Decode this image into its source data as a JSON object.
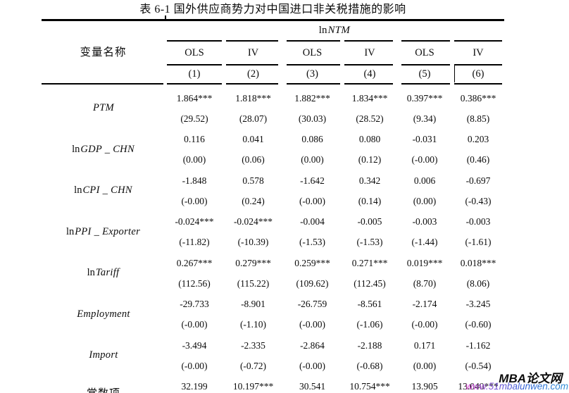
{
  "title": "表 6-1 国外供应商势力对中国进口非关税措施的影响",
  "header": {
    "var_col_label": "变量名称",
    "dep_var_prefix": "ln",
    "dep_var_name": "NTM",
    "methods": [
      "OLS",
      "IV",
      "OLS",
      "IV",
      "OLS",
      "IV"
    ],
    "model_numbers": [
      "(1)",
      "(2)",
      "(3)",
      "(4)",
      "(5)",
      "(6)"
    ]
  },
  "rows": [
    {
      "prefix": "",
      "name": "PTM",
      "coefs": [
        "1.864***",
        "1.818***",
        "1.882***",
        "1.834***",
        "0.397***",
        "0.386***"
      ],
      "tstats": [
        "(29.52)",
        "(28.07)",
        "(30.03)",
        "(28.52)",
        "(9.34)",
        "(8.85)"
      ]
    },
    {
      "prefix": "ln",
      "name": "GDP _ CHN",
      "coefs": [
        "0.116",
        "0.041",
        "0.086",
        "0.080",
        "-0.031",
        "0.203"
      ],
      "tstats": [
        "(0.00)",
        "(0.06)",
        "(0.00)",
        "(0.12)",
        "(-0.00)",
        "(0.46)"
      ]
    },
    {
      "prefix": "ln",
      "name": "CPI _ CHN",
      "coefs": [
        "-1.848",
        "0.578",
        "-1.642",
        "0.342",
        "0.006",
        "-0.697"
      ],
      "tstats": [
        "(-0.00)",
        "(0.24)",
        "(-0.00)",
        "(0.14)",
        "(0.00)",
        "(-0.43)"
      ]
    },
    {
      "prefix": "ln",
      "name": "PPI _ Exporter",
      "coefs": [
        "-0.024***",
        "-0.024***",
        "-0.004",
        "-0.005",
        "-0.003",
        "-0.003"
      ],
      "tstats": [
        "(-11.82)",
        "(-10.39)",
        "(-1.53)",
        "(-1.53)",
        "(-1.44)",
        "(-1.61)"
      ]
    },
    {
      "prefix": "ln",
      "name": "Tariff",
      "coefs": [
        "0.267***",
        "0.279***",
        "0.259***",
        "0.271***",
        "0.019***",
        "0.018***"
      ],
      "tstats": [
        "(112.56)",
        "(115.22)",
        "(109.62)",
        "(112.45)",
        "(8.70)",
        "(8.06)"
      ]
    },
    {
      "prefix": "",
      "name": "Employment",
      "coefs": [
        "-29.733",
        "-8.901",
        "-26.759",
        "-8.561",
        "-2.174",
        "-3.245"
      ],
      "tstats": [
        "(-0.00)",
        "(-1.10)",
        "(-0.00)",
        "(-1.06)",
        "(-0.00)",
        "(-0.60)"
      ]
    },
    {
      "prefix": "",
      "name": "Import",
      "coefs": [
        "-3.494",
        "-2.335",
        "-2.864",
        "-2.188",
        "0.171",
        "-1.162"
      ],
      "tstats": [
        "(-0.00)",
        "(-0.72)",
        "(-0.00)",
        "(-0.68)",
        "(0.00)",
        "(-0.54)"
      ]
    },
    {
      "prefix": "",
      "name": "常数项",
      "coefs": [
        "32.199",
        "10.197***",
        "30.541",
        "10.754***",
        "13.905",
        "13.040***"
      ]
    }
  ],
  "watermark": {
    "brand": "MBA论文网",
    "url": "www.51mbalunwen.com",
    "url_color_start": "#d63ac8",
    "url_color_end": "#2f8fd6"
  }
}
